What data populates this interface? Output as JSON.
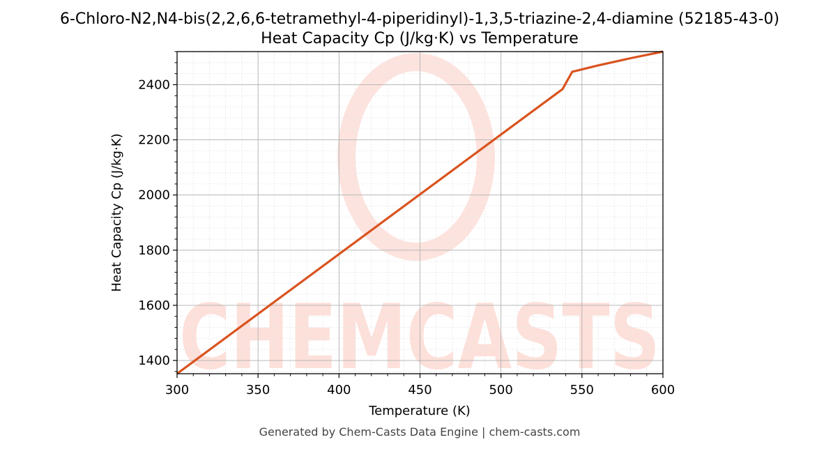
{
  "chart_data": {
    "type": "line",
    "title": "6-Chloro-N2,N4-bis(2,2,6,6-tetramethyl-4-piperidinyl)-1,3,5-triazine-2,4-diamine (52185-43-0)",
    "subtitle": "Heat Capacity Cp (J/kg·K) vs Temperature",
    "xlabel": "Temperature (K)",
    "ylabel": "Heat Capacity Cp (J/kg·K)",
    "xlim": [
      300,
      600
    ],
    "ylim": [
      1352,
      2520
    ],
    "xticks": [
      300,
      350,
      400,
      450,
      500,
      550,
      600
    ],
    "yticks": [
      1400,
      1600,
      1800,
      2000,
      2200,
      2400
    ],
    "grid": true,
    "series": [
      {
        "color": "#d9531e",
        "x": [
          300,
          538,
          544,
          560,
          580,
          600
        ],
        "y": [
          1352,
          2384,
          2447,
          2470,
          2496,
          2520
        ]
      }
    ]
  },
  "watermark": {
    "text": "CHEMCASTS",
    "color": "#fde0da"
  },
  "footer": "Generated by Chem-Casts Data Engine | chem-casts.com"
}
